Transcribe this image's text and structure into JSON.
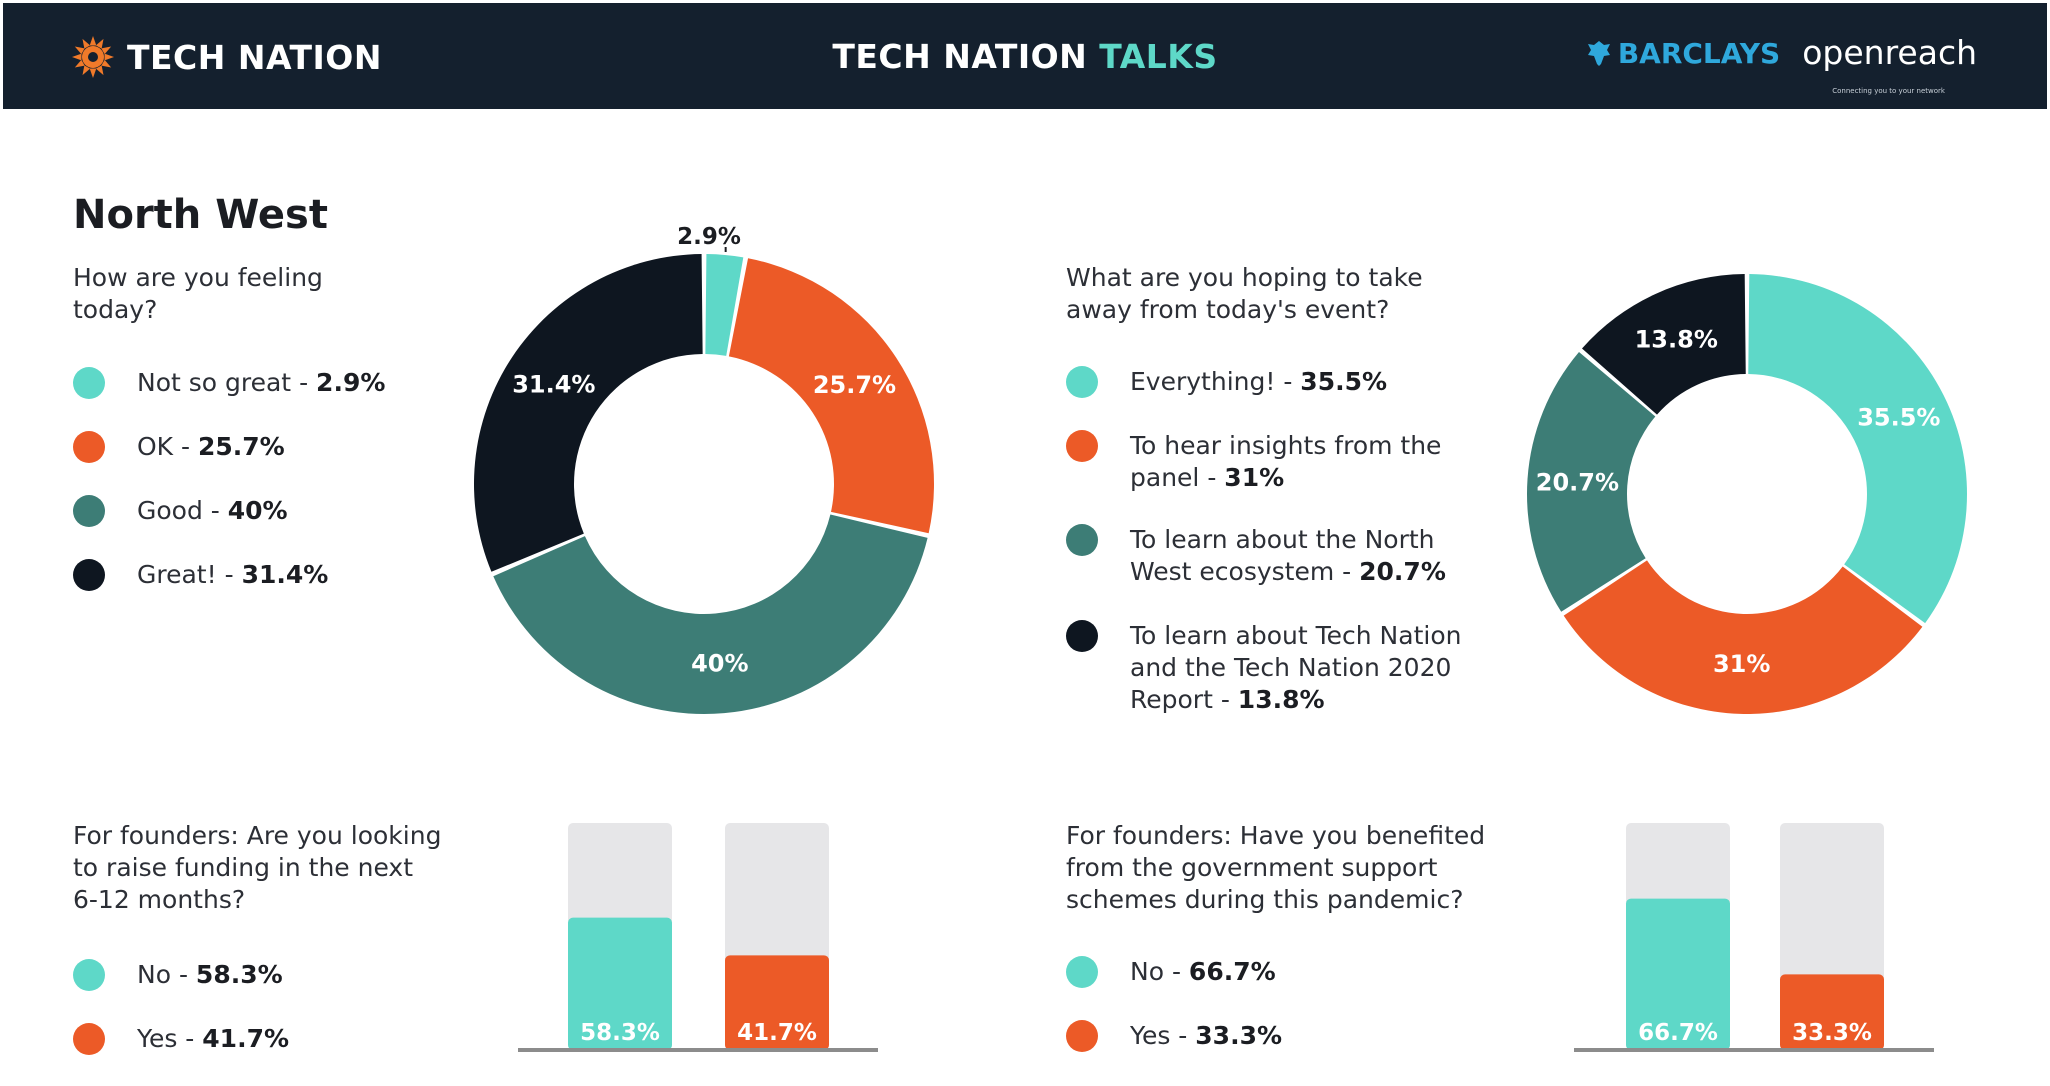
{
  "header": {
    "brand": "TECH NATION",
    "title_part1": "TECH NATION",
    "title_part2": "TALKS",
    "partner1": "BARCLAYS",
    "partner2": "openreach",
    "partner2_tagline": "Connecting you to your network"
  },
  "page_title": "North West",
  "colors": {
    "header_bg": "#14202e",
    "turquoise": "#5ed8c8",
    "orange": "#ec5a27",
    "teal": "#3d7d76",
    "black": "#0e1620",
    "track": "#e6e6e8",
    "baseline": "#8c8c8c"
  },
  "panels": {
    "feeling": {
      "question": [
        "How are you feeling",
        "today?"
      ],
      "items": [
        {
          "label": "Not so great",
          "value": "2.9%"
        },
        {
          "label": "OK",
          "value": "25.7%"
        },
        {
          "label": "Good",
          "value": "40%"
        },
        {
          "label": "Great!",
          "value": "31.4%"
        }
      ]
    },
    "takeaway": {
      "question": [
        "What are you hoping to take",
        "away from today's event?"
      ],
      "items": [
        {
          "lines": [
            "Everything!"
          ],
          "value": "35.5%"
        },
        {
          "lines": [
            "To hear insights from the",
            "panel"
          ],
          "value": "31%"
        },
        {
          "lines": [
            "To learn about the North",
            "West ecosystem"
          ],
          "value": "20.7%"
        },
        {
          "lines": [
            "To learn about Tech Nation",
            "and the Tech Nation 2020",
            "Report"
          ],
          "value": "13.8%"
        }
      ]
    },
    "funding": {
      "question": [
        "For founders: Are you looking",
        "to raise funding in the next",
        "6-12 months?"
      ],
      "items": [
        {
          "label": "No",
          "value": "58.3%"
        },
        {
          "label": "Yes",
          "value": "41.7%"
        }
      ]
    },
    "support": {
      "question": [
        "For founders: Have you benefited",
        "from the government support",
        "schemes during this pandemic?"
      ],
      "items": [
        {
          "label": "No",
          "value": "66.7%"
        },
        {
          "label": "Yes",
          "value": "33.3%"
        }
      ]
    }
  },
  "chart_data": [
    {
      "type": "pie",
      "title": "How are you feeling today?",
      "categories": [
        "Not so great",
        "OK",
        "Good",
        "Great!"
      ],
      "values": [
        2.9,
        25.7,
        40,
        31.4
      ],
      "labels": [
        "2.9%",
        "25.7%",
        "40%",
        "31.4%"
      ],
      "colors": [
        "#5ed8c8",
        "#ec5a27",
        "#3d7d76",
        "#0e1620"
      ]
    },
    {
      "type": "pie",
      "title": "What are you hoping to take away from today's event?",
      "categories": [
        "Everything!",
        "To hear insights from the panel",
        "To learn about the North West ecosystem",
        "To learn about Tech Nation and the Tech Nation 2020 Report"
      ],
      "values": [
        35.5,
        31,
        20.7,
        13.8
      ],
      "labels": [
        "35.5%",
        "31%",
        "20.7%",
        "13.8%"
      ],
      "colors": [
        "#5ed8c8",
        "#ec5a27",
        "#3d7d76",
        "#0e1620"
      ]
    },
    {
      "type": "bar",
      "title": "For founders: Are you looking to raise funding in the next 6-12 months?",
      "categories": [
        "No",
        "Yes"
      ],
      "values": [
        58.3,
        41.7
      ],
      "labels": [
        "58.3%",
        "41.7%"
      ],
      "ylim": [
        0,
        100
      ],
      "colors": [
        "#5ed8c8",
        "#ec5a27"
      ]
    },
    {
      "type": "bar",
      "title": "For founders: Have you benefited from the government support schemes during this pandemic?",
      "categories": [
        "No",
        "Yes"
      ],
      "values": [
        66.7,
        33.3
      ],
      "labels": [
        "66.7%",
        "33.3%"
      ],
      "ylim": [
        0,
        100
      ],
      "colors": [
        "#5ed8c8",
        "#ec5a27"
      ]
    }
  ]
}
